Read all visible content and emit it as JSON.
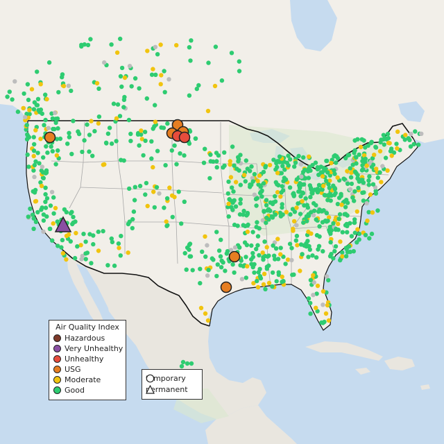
{
  "colors": {
    "water": "#c6dbef",
    "land": "#f2efe9",
    "mexico_land": "#e9e6df",
    "green_land": "#dbe7cf",
    "state_border": "#a8a8a8",
    "country_border": "#111111"
  },
  "legend_aqi": {
    "title": "Air Quality Index",
    "items": [
      {
        "label": "Hazardous",
        "color": "#7e3a2a"
      },
      {
        "label": "Very Unhealthy",
        "color": "#8b4fa3"
      },
      {
        "label": "Unhealthy",
        "color": "#e74c3c"
      },
      {
        "label": "USG",
        "color": "#e67e22"
      },
      {
        "label": "Moderate",
        "color": "#f1c40f"
      },
      {
        "label": "Good",
        "color": "#2ecc71"
      }
    ]
  },
  "legend_type": {
    "items": [
      {
        "label": "temporary",
        "icon": "circle-icon"
      },
      {
        "label": "permanent",
        "icon": "triangle-icon"
      }
    ]
  }
}
